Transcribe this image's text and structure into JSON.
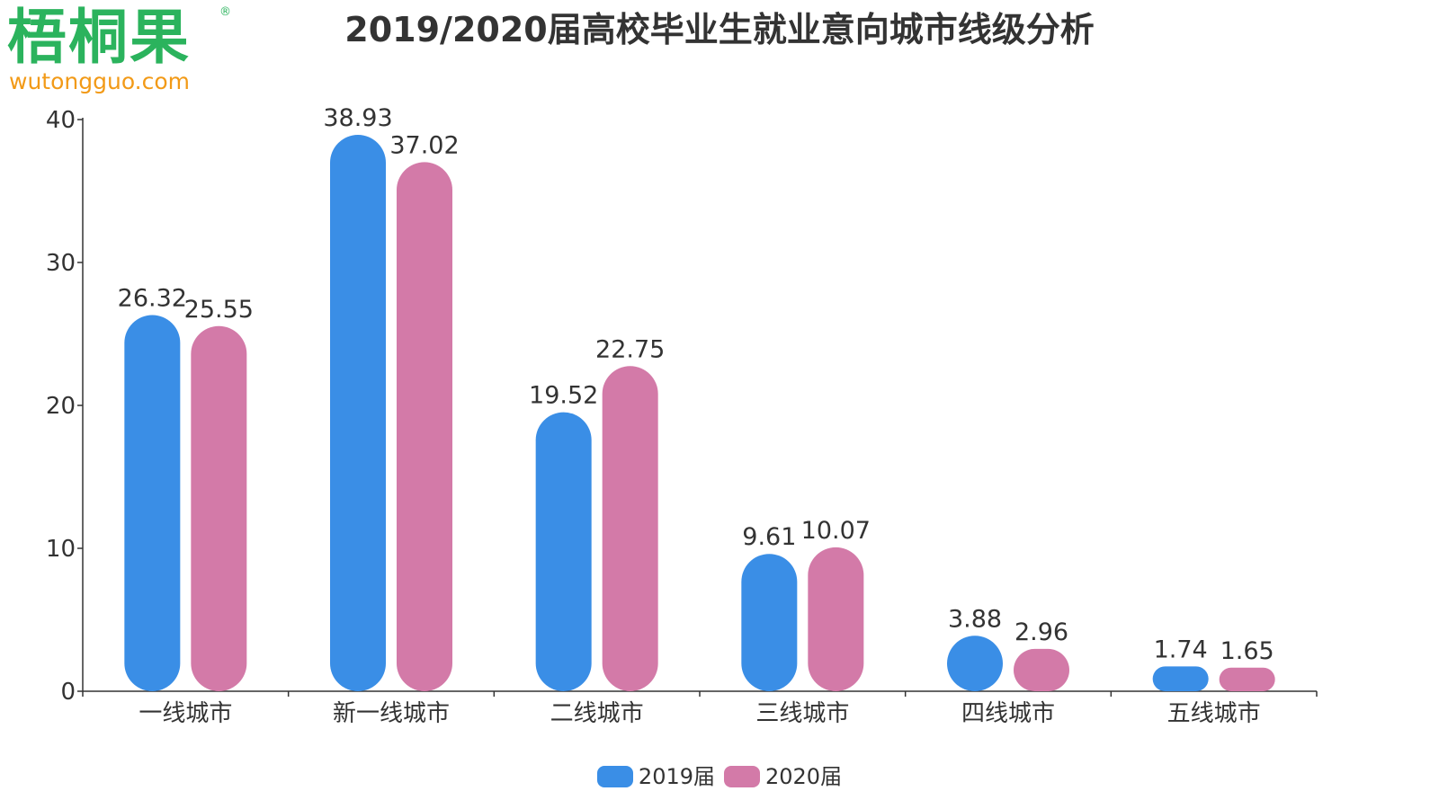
{
  "logo": {
    "name": "梧桐果",
    "registered_mark": "®",
    "url": "wutongguo.com",
    "color": "#2bb35d",
    "url_color": "#f29a17"
  },
  "chart_data": {
    "type": "bar",
    "title": "2019/2020届高校毕业生就业意向城市线级分析",
    "categories": [
      "一线城市",
      "新一线城市",
      "二线城市",
      "三线城市",
      "四线城市",
      "五线城市"
    ],
    "series": [
      {
        "name": "2019届",
        "values": [
          26.32,
          38.93,
          19.52,
          9.61,
          3.88,
          1.74
        ],
        "color": "#3a8ee6"
      },
      {
        "name": "2020届",
        "values": [
          25.55,
          37.02,
          22.75,
          10.07,
          2.96,
          1.65
        ],
        "color": "#d37aa8"
      }
    ],
    "yticks": [
      0,
      10,
      20,
      30,
      40
    ],
    "ylim": [
      0,
      40
    ],
    "xlabel": "",
    "ylabel": "",
    "grid": false,
    "legend_position": "bottom-center"
  }
}
